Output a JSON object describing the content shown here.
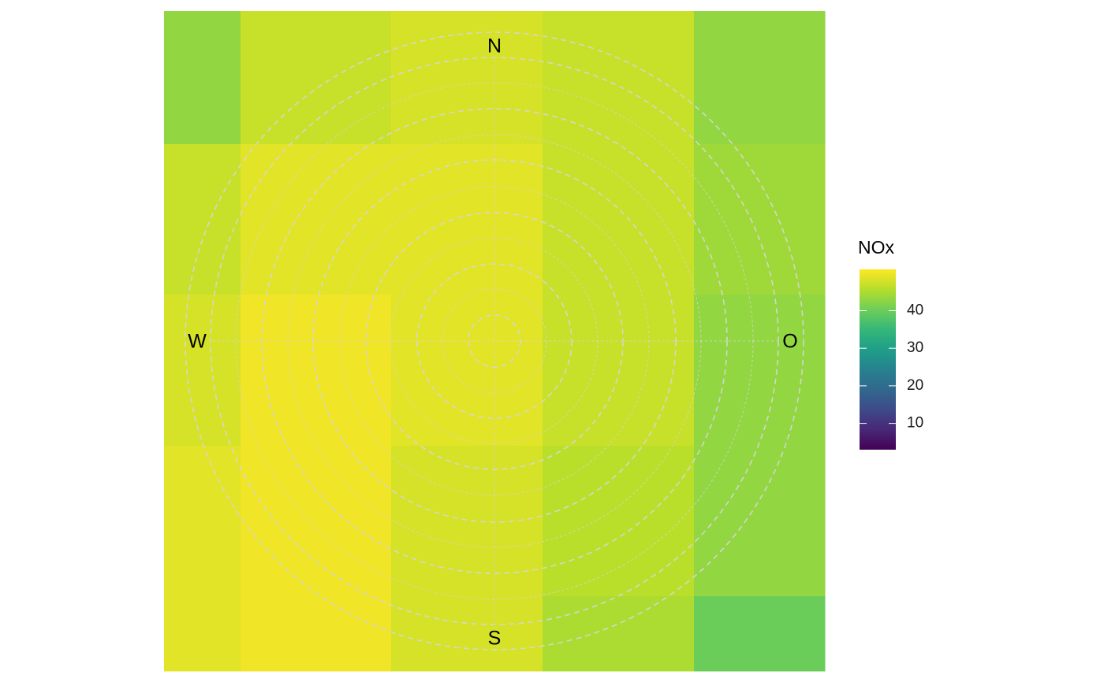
{
  "chart_data": {
    "type": "heatmap",
    "subtype": "polar-annulus-grid",
    "compass_labels": {
      "north": "N",
      "south": "S",
      "west": "W",
      "east": "O"
    },
    "rows": [
      [
        43,
        47,
        48,
        47,
        43
      ],
      [
        47,
        49,
        49,
        47,
        44
      ],
      [
        48,
        50,
        49,
        47,
        43
      ],
      [
        49,
        50,
        48,
        46,
        43
      ],
      [
        49,
        50,
        48,
        45,
        40
      ]
    ],
    "color_scale": {
      "palette": "viridis",
      "min": 3,
      "max": 51,
      "stops": [
        "#440154",
        "#482878",
        "#3e4a89",
        "#31688e",
        "#26828e",
        "#1f9e89",
        "#35b779",
        "#6ece58",
        "#b5de2b",
        "#fde725"
      ]
    },
    "grid": "dashed concentric circles with crosshair",
    "legend": {
      "title": "NOx",
      "ticks": [
        10,
        20,
        30,
        40
      ],
      "position": "right"
    }
  }
}
